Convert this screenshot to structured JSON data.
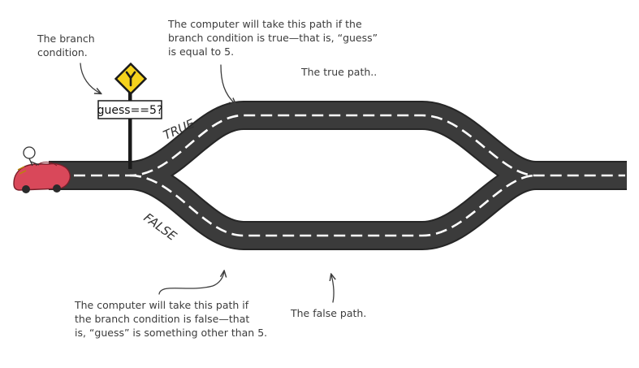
{
  "sign": {
    "text": "guess==5?",
    "icon": "y-junction-warning-sign"
  },
  "road_labels": {
    "true_label": "TRUE",
    "false_label": "FALSE"
  },
  "annotations": {
    "branch_condition": {
      "lines": [
        "The branch",
        "condition."
      ]
    },
    "true_branch": {
      "lines": [
        "The computer will take this path if the",
        "branch condition is true—that is, “guess”",
        "is equal to 5."
      ]
    },
    "true_path": {
      "lines": [
        "The true path.."
      ]
    },
    "false_branch": {
      "lines": [
        "The computer will take this path if",
        "the branch condition is false—that",
        "is, “guess” is something other than 5."
      ]
    },
    "false_path": {
      "lines": [
        "The false path."
      ]
    }
  },
  "colors": {
    "road": "#3b3b3b",
    "road_edge": "#262626",
    "lane_marking": "#ffffff",
    "sign_yellow": "#f5d21c",
    "car": "#d9485a",
    "annotation_text": "#3c3c3c"
  }
}
